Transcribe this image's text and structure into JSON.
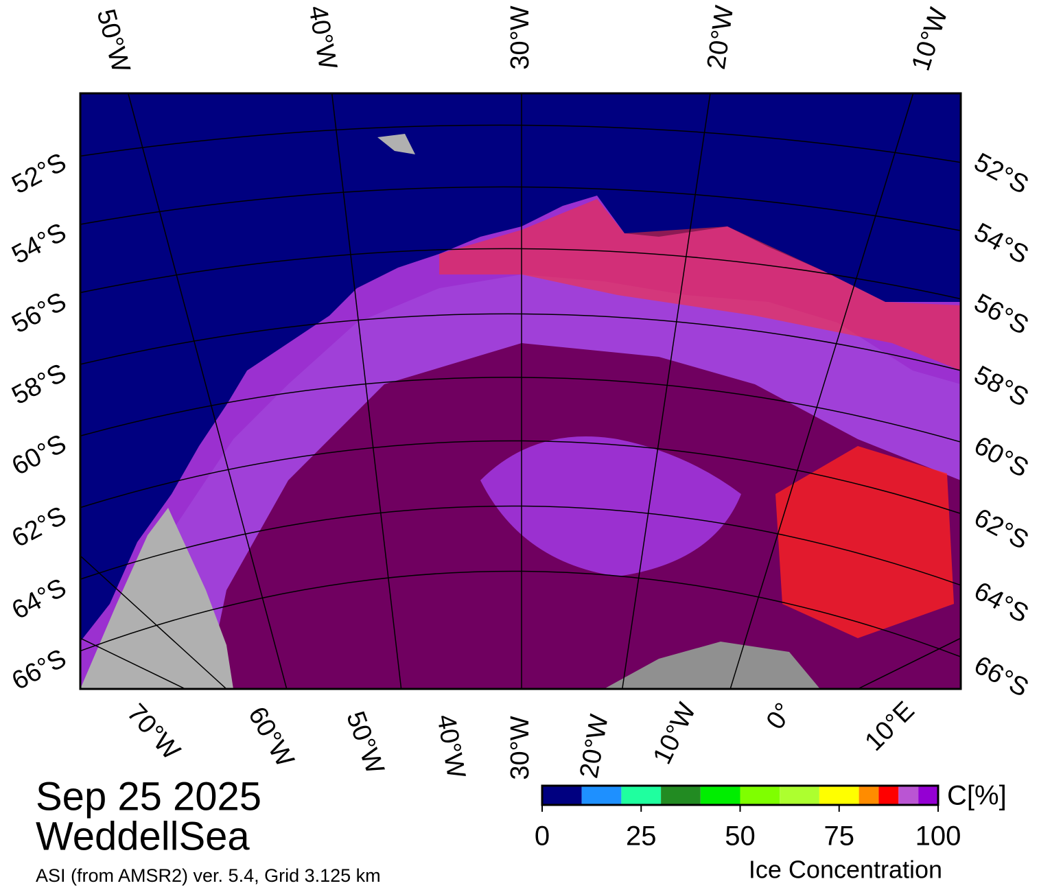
{
  "map": {
    "top_labels": [
      "50°W",
      "40°W",
      "30°W",
      "20°W",
      "10°W"
    ],
    "bottom_labels": [
      "70°W",
      "60°W",
      "50°W",
      "40°W",
      "30°W",
      "20°W",
      "10°W",
      "0°",
      "10°E"
    ],
    "left_labels": [
      "52°S",
      "54°S",
      "56°S",
      "58°S",
      "60°S",
      "62°S",
      "64°S",
      "66°S"
    ],
    "right_labels": [
      "52°S",
      "54°S",
      "56°S",
      "58°S",
      "60°S",
      "62°S",
      "64°S",
      "66°S"
    ]
  },
  "date": "Sep 25 2025",
  "region": "WeddellSea",
  "source": "ASI (from AMSR2) ver. 5.4,  Grid 3.125 km",
  "colorbar": {
    "label": "Ice Concentration",
    "unit": "C[%]",
    "range": [
      0,
      100
    ],
    "ticks": [
      0,
      25,
      50,
      75,
      100
    ],
    "bins": [
      0,
      10,
      20,
      30,
      40,
      50,
      60,
      70,
      80,
      85,
      90,
      95,
      100
    ],
    "colors": [
      "#000080",
      "#1e90ff",
      "#1fff9f",
      "#228b22",
      "#00ee00",
      "#7fff00",
      "#adff2f",
      "#ffff00",
      "#ff8c00",
      "#ff0000",
      "#ba55d3",
      "#9400d3"
    ]
  }
}
